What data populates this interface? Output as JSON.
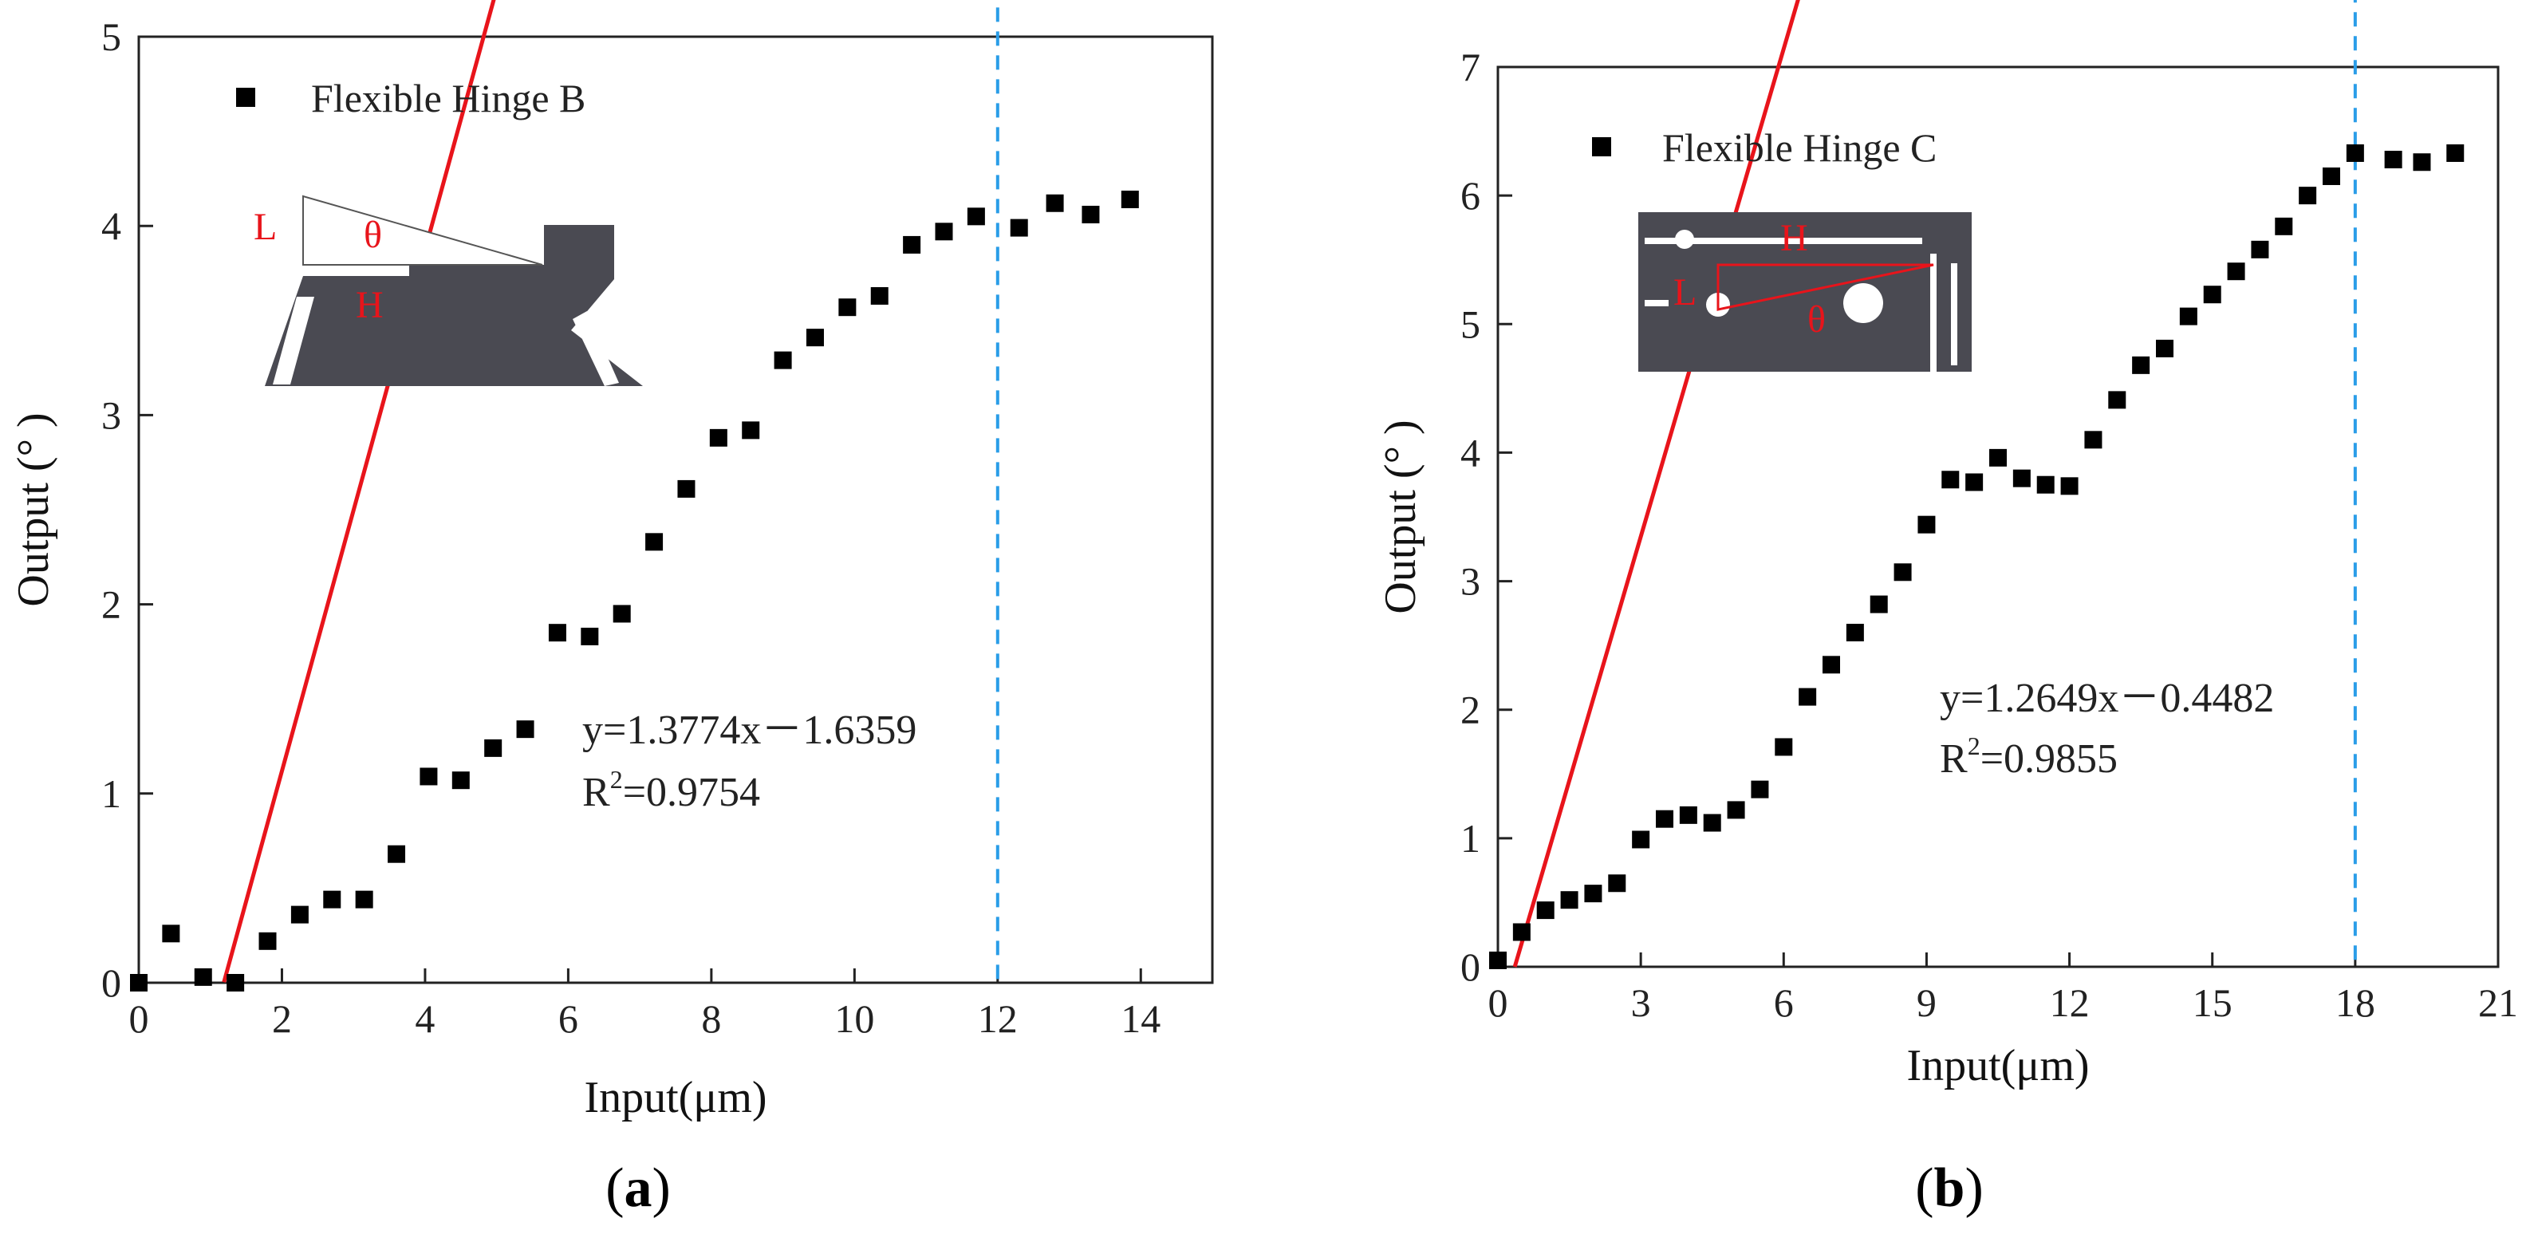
{
  "colors": {
    "marker": "#000000",
    "fit_line": "#e8141b",
    "dashed_line": "#2a9de8",
    "inset_fill": "#4a4a52",
    "inset_label": "#e8141b"
  },
  "chart_data": [
    {
      "type": "scatter",
      "panel_caption": "a",
      "xlabel": "Input(μm)",
      "ylabel": "Output (° )",
      "xlim": [
        0,
        15
      ],
      "ylim": [
        0,
        5
      ],
      "xticks": [
        0,
        2,
        4,
        6,
        8,
        10,
        12,
        14
      ],
      "yticks": [
        0,
        1,
        2,
        3,
        4,
        5
      ],
      "legend": "Flexible Hinge B",
      "inset_icon": "flexible-hinge-b-diagram",
      "inset_labels": {
        "l": "L",
        "theta": "θ",
        "h": "H"
      },
      "series": [
        {
          "name": "Flexible Hinge B",
          "x": [
            0,
            0.45,
            0.9,
            1.35,
            1.8,
            2.25,
            2.7,
            3.15,
            3.6,
            4.05,
            4.5,
            4.95,
            5.4,
            5.85,
            6.3,
            6.75,
            7.2,
            7.65,
            8.1,
            8.55,
            9.0,
            9.45,
            9.9,
            10.35,
            10.8,
            11.25,
            11.7,
            12.3,
            12.8,
            13.3,
            13.85
          ],
          "y": [
            0,
            0.26,
            0.03,
            0.0,
            0.22,
            0.36,
            0.44,
            0.44,
            0.68,
            1.09,
            1.07,
            1.24,
            1.34,
            1.85,
            1.83,
            1.95,
            2.33,
            2.61,
            2.88,
            2.92,
            3.29,
            3.41,
            3.57,
            3.63,
            3.9,
            3.97,
            4.05,
            3.99,
            4.12,
            4.06,
            4.14
          ]
        }
      ],
      "fit": {
        "slope": 1.3774,
        "intercept": -1.6359,
        "x_start": 1.19,
        "x_end": 12.0
      },
      "equation": "y=1.3774x－1.6359",
      "r2_prefix": "R",
      "r2_sup": "2",
      "r2_value": "=0.9754",
      "dashed_x": 12
    },
    {
      "type": "scatter",
      "panel_caption": "b",
      "xlabel": "Input(μm)",
      "ylabel": "Output (° )",
      "xlim": [
        0,
        21
      ],
      "ylim": [
        0,
        7
      ],
      "xticks": [
        0,
        3,
        6,
        9,
        12,
        15,
        18,
        21
      ],
      "yticks": [
        0,
        1,
        2,
        3,
        4,
        5,
        6,
        7
      ],
      "legend": "Flexible Hinge C",
      "inset_icon": "flexible-hinge-c-diagram",
      "inset_labels": {
        "h": "H",
        "l": "L",
        "theta": "θ"
      },
      "series": [
        {
          "name": "Flexible Hinge C",
          "x": [
            0,
            0.5,
            1.0,
            1.5,
            2.0,
            2.5,
            3.0,
            3.5,
            4.0,
            4.5,
            5.0,
            5.5,
            6.0,
            6.5,
            7.0,
            7.5,
            8.0,
            8.5,
            9.0,
            9.5,
            10.0,
            10.5,
            11.0,
            11.5,
            12.0,
            12.5,
            13.0,
            13.5,
            14.0,
            14.5,
            15.0,
            15.5,
            16.0,
            16.5,
            17.0,
            17.5,
            18.0,
            18.8,
            19.4,
            20.1
          ],
          "y": [
            0.05,
            0.27,
            0.44,
            0.52,
            0.57,
            0.65,
            0.99,
            1.15,
            1.18,
            1.12,
            1.22,
            1.38,
            1.71,
            2.1,
            2.35,
            2.6,
            2.82,
            3.07,
            3.44,
            3.79,
            3.77,
            3.96,
            3.8,
            3.75,
            3.74,
            4.1,
            4.41,
            4.68,
            4.81,
            5.06,
            5.23,
            5.41,
            5.58,
            5.76,
            6.0,
            6.15,
            6.33,
            6.28,
            6.26,
            6.33
          ]
        }
      ],
      "fit": {
        "slope": 1.2649,
        "intercept": -0.4482,
        "x_start": 0.354,
        "x_end": 18.0
      },
      "equation": "y=1.2649x－0.4482",
      "r2_prefix": "R",
      "r2_sup": "2",
      "r2_value": "=0.9855",
      "dashed_x": 18
    }
  ]
}
